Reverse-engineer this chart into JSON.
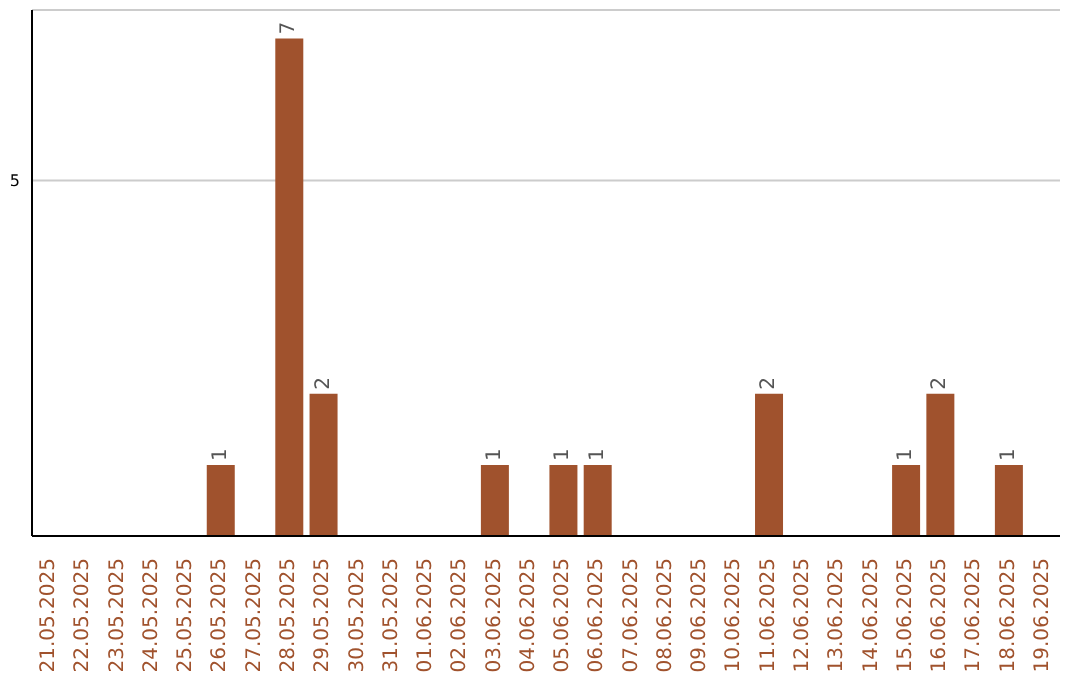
{
  "chart_data": {
    "type": "bar",
    "categories": [
      "21.05.2025",
      "22.05.2025",
      "23.05.2025",
      "24.05.2025",
      "25.05.2025",
      "26.05.2025",
      "27.05.2025",
      "28.05.2025",
      "29.05.2025",
      "30.05.2025",
      "31.05.2025",
      "01.06.2025",
      "02.06.2025",
      "03.06.2025",
      "04.06.2025",
      "05.06.2025",
      "06.06.2025",
      "07.06.2025",
      "08.06.2025",
      "09.06.2025",
      "10.06.2025",
      "11.06.2025",
      "12.06.2025",
      "13.06.2025",
      "14.06.2025",
      "15.06.2025",
      "16.06.2025",
      "17.06.2025",
      "18.06.2025",
      "19.06.2025"
    ],
    "values": [
      0,
      0,
      0,
      0,
      0,
      1,
      0,
      7,
      2,
      0,
      0,
      0,
      0,
      1,
      0,
      1,
      1,
      0,
      0,
      0,
      0,
      2,
      0,
      0,
      0,
      1,
      2,
      0,
      1,
      0
    ],
    "value_labels": [
      null,
      null,
      null,
      null,
      null,
      "1",
      null,
      "7",
      "2",
      null,
      null,
      null,
      null,
      "1",
      null,
      "1",
      "1",
      null,
      null,
      null,
      null,
      "2",
      null,
      null,
      null,
      "1",
      "2",
      null,
      "1",
      null
    ],
    "color": "#a0522d",
    "ylim": [
      0,
      7.4
    ],
    "yticks": [
      5
    ],
    "grid": "y"
  }
}
